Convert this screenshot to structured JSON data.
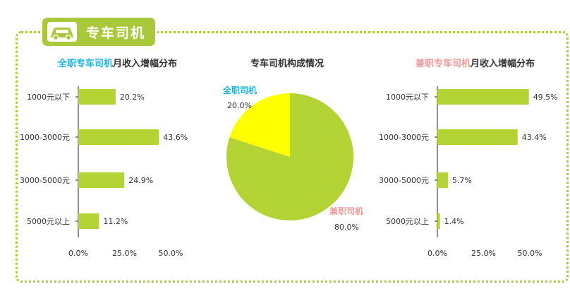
{
  "colors": {
    "accent": "#a9c93a",
    "bar": "#b4d334",
    "full_time": "#ffff00",
    "blue": "#1fb5e6",
    "pink": "#f39b9b"
  },
  "section": {
    "title": "专车司机",
    "icon": "car-icon"
  },
  "chart_data": [
    {
      "type": "bar",
      "orientation": "horizontal",
      "title_prefix": "全职专车司机",
      "title_suffix": "月收入增幅分布",
      "categories": [
        "1000元以下",
        "1000-3000元",
        "3000-5000元",
        "5000元以上"
      ],
      "values": [
        20.2,
        43.6,
        24.9,
        11.2
      ],
      "value_labels": [
        "20.2%",
        "43.6%",
        "24.9%",
        "11.2%"
      ],
      "xlim": [
        0,
        50
      ],
      "xticks": [
        "0.0%",
        "25.0%",
        "50.0%"
      ]
    },
    {
      "type": "pie",
      "title": "专车司机构成情况",
      "slices": [
        {
          "label": "全职司机",
          "value": 20.0,
          "value_label": "20.0%",
          "color": "#ffff00"
        },
        {
          "label": "兼职司机",
          "value": 80.0,
          "value_label": "80.0%",
          "color": "#b4d334"
        }
      ]
    },
    {
      "type": "bar",
      "orientation": "horizontal",
      "title_prefix": "兼职专车司机",
      "title_suffix": "月收入增幅分布",
      "categories": [
        "1000元以下",
        "1000-3000元",
        "3000-5000元",
        "5000元以上"
      ],
      "values": [
        49.5,
        43.4,
        5.7,
        1.4
      ],
      "value_labels": [
        "49.5%",
        "43.4%",
        "5.7%",
        "1.4%"
      ],
      "xlim": [
        0,
        50
      ],
      "xticks": [
        "0.0%",
        "25.0%",
        "50.0%"
      ]
    }
  ]
}
